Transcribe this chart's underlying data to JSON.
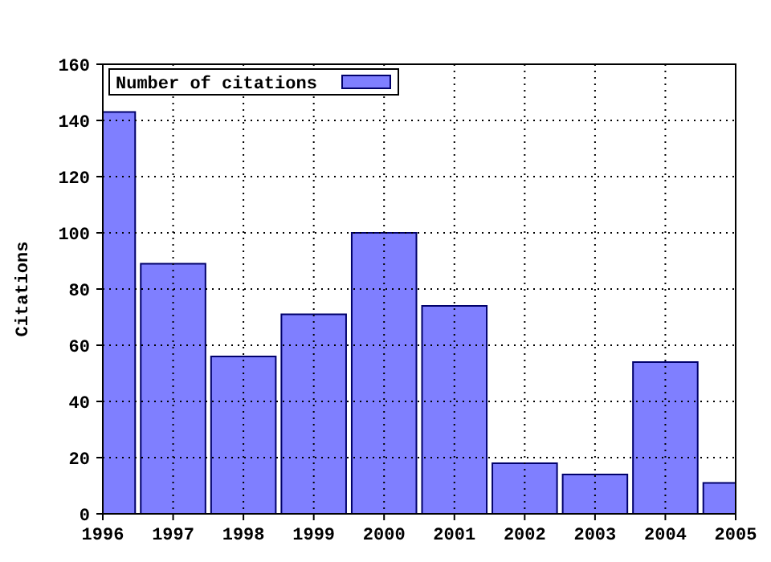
{
  "chart_data": {
    "type": "bar",
    "ylabel": "Citations",
    "x": [
      1996,
      1997,
      1998,
      1999,
      2000,
      2001,
      2002,
      2003,
      2004,
      2005
    ],
    "series": [
      {
        "name": "Number of citations",
        "color": "#7f7fff",
        "values": [
          143,
          89,
          56,
          71,
          100,
          74,
          18,
          14,
          54,
          11
        ]
      }
    ],
    "xlim": [
      1996,
      2005
    ],
    "xticks": [
      1996,
      1997,
      1998,
      1999,
      2000,
      2001,
      2002,
      2003,
      2004,
      2005
    ],
    "ylim": [
      0,
      160
    ],
    "yticks": [
      0,
      20,
      40,
      60,
      80,
      100,
      120,
      140,
      160
    ],
    "grid": true,
    "legend": "top left"
  }
}
